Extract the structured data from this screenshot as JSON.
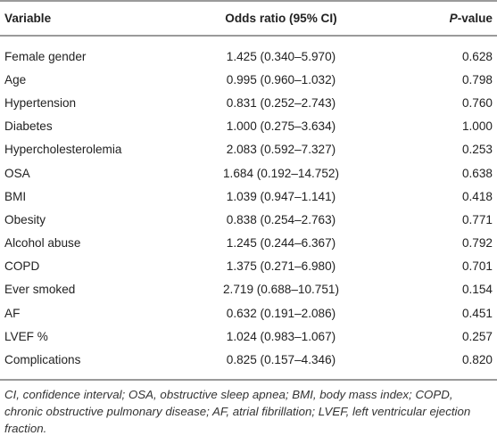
{
  "table": {
    "header": [
      "Variable",
      "Odds ratio (95% CI)",
      "P-value"
    ],
    "rows": [
      [
        "Female gender",
        "1.425 (0.340–5.970)",
        "0.628"
      ],
      [
        "Age",
        "0.995 (0.960–1.032)",
        "0.798"
      ],
      [
        "Hypertension",
        "0.831 (0.252–2.743)",
        "0.760"
      ],
      [
        "Diabetes",
        "1.000 (0.275–3.634)",
        "1.000"
      ],
      [
        "Hypercholesterolemia",
        "2.083 (0.592–7.327)",
        "0.253"
      ],
      [
        "OSA",
        "1.684 (0.192–14.752)",
        "0.638"
      ],
      [
        "BMI",
        "1.039 (0.947–1.141)",
        "0.418"
      ],
      [
        "Obesity",
        "0.838 (0.254–2.763)",
        "0.771"
      ],
      [
        "Alcohol abuse",
        "1.245 (0.244–6.367)",
        "0.792"
      ],
      [
        "COPD",
        "1.375 (0.271–6.980)",
        "0.701"
      ],
      [
        "Ever smoked",
        "2.719 (0.688–10.751)",
        "0.154"
      ],
      [
        "AF",
        "0.632 (0.191–2.086)",
        "0.451"
      ],
      [
        "LVEF %",
        "1.024 (0.983–1.067)",
        "0.257"
      ],
      [
        "Complications",
        "0.825 (0.157–4.346)",
        "0.820"
      ]
    ]
  },
  "footnote": "CI, confidence interval; OSA, obstructive sleep apnea; BMI, body mass index; COPD, chronic obstructive pulmonary disease; AF, atrial fibrillation; LVEF, left ventricular ejection fraction."
}
